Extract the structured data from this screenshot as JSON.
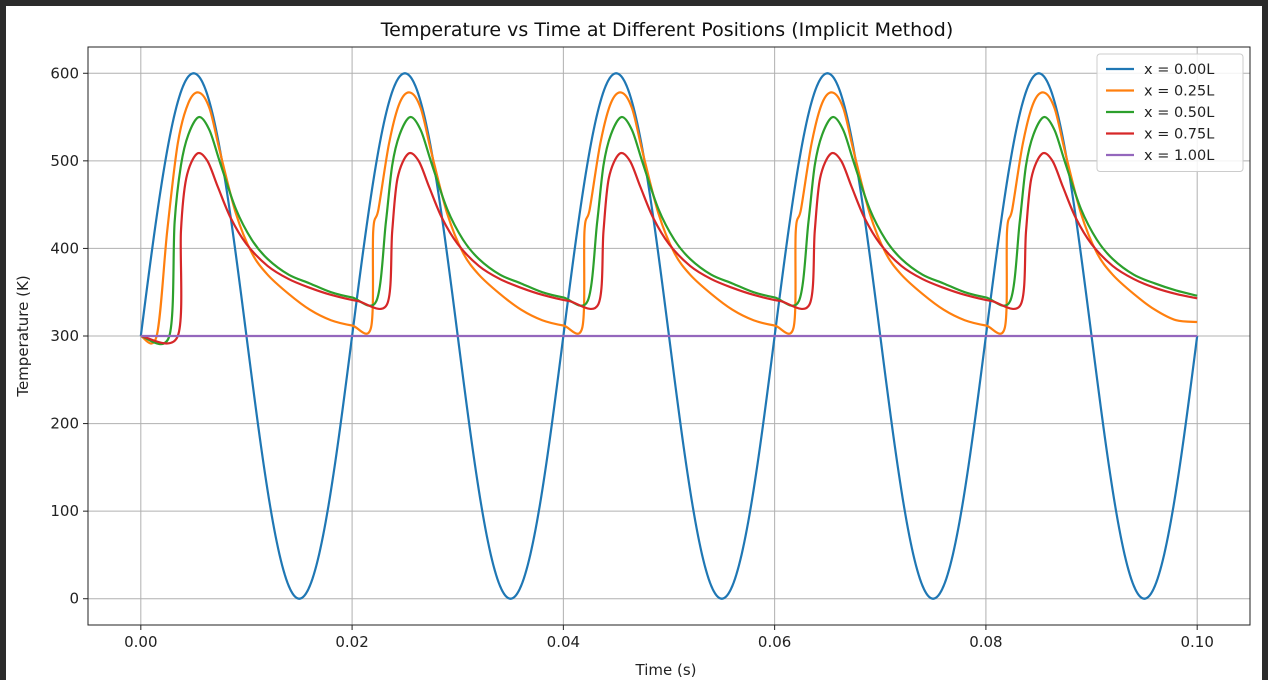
{
  "chart_data": {
    "type": "line",
    "title": "Temperature vs Time at Different Positions (Implicit Method)",
    "xlabel": "Time (s)",
    "ylabel": "Temperature (K)",
    "xlim": [
      -0.005,
      0.105
    ],
    "ylim": [
      -30,
      630
    ],
    "xticks": [
      0.0,
      0.02,
      0.04,
      0.06,
      0.08,
      0.1
    ],
    "xtick_labels": [
      "0.00",
      "0.02",
      "0.04",
      "0.06",
      "0.08",
      "0.10"
    ],
    "yticks": [
      0,
      100,
      200,
      300,
      400,
      500,
      600
    ],
    "ytick_labels": [
      "0",
      "100",
      "200",
      "300",
      "400",
      "500",
      "600"
    ],
    "grid": true,
    "legend_position": "top-right",
    "period": 0.02,
    "series": [
      {
        "name": "x = 0.00L",
        "color": "#1f77b4",
        "x": [
          0.0,
          0.0025,
          0.005,
          0.0075,
          0.01,
          0.0125,
          0.015,
          0.0175,
          0.02,
          0.0225,
          0.025,
          0.0275,
          0.03,
          0.0325,
          0.035,
          0.0375,
          0.04,
          0.0425,
          0.045,
          0.0475,
          0.05,
          0.0525,
          0.055,
          0.0575,
          0.06,
          0.0625,
          0.065,
          0.0675,
          0.07,
          0.0725,
          0.075,
          0.0775,
          0.08,
          0.0825,
          0.085,
          0.0875,
          0.09,
          0.0925,
          0.095,
          0.0975,
          0.1
        ],
        "y": [
          300,
          512,
          600,
          512,
          300,
          88,
          0,
          88,
          300,
          512,
          600,
          512,
          300,
          88,
          0,
          88,
          300,
          512,
          600,
          512,
          300,
          88,
          0,
          88,
          300,
          512,
          600,
          512,
          300,
          88,
          0,
          88,
          300,
          512,
          600,
          512,
          300,
          88,
          0,
          88,
          300
        ]
      },
      {
        "name": "x = 0.25L",
        "color": "#ff7f0e",
        "x": [
          0.0,
          0.0015,
          0.0025,
          0.0035,
          0.0045,
          0.0055,
          0.0065,
          0.0075,
          0.009,
          0.0105,
          0.012,
          0.014,
          0.016,
          0.018,
          0.02,
          0.0218,
          0.022,
          0.0225,
          0.0235,
          0.0245,
          0.0255,
          0.0265,
          0.0275,
          0.029,
          0.0305,
          0.032,
          0.034,
          0.036,
          0.038,
          0.04,
          0.0418,
          0.042,
          0.0425,
          0.0435,
          0.0445,
          0.0455,
          0.0465,
          0.0475,
          0.049,
          0.0505,
          0.052,
          0.054,
          0.056,
          0.058,
          0.06,
          0.0618,
          0.062,
          0.0625,
          0.0635,
          0.0645,
          0.0655,
          0.0665,
          0.0675,
          0.069,
          0.0705,
          0.072,
          0.074,
          0.076,
          0.078,
          0.08,
          0.0818,
          0.082,
          0.0825,
          0.0835,
          0.0845,
          0.0855,
          0.0865,
          0.0875,
          0.089,
          0.0905,
          0.092,
          0.094,
          0.096,
          0.098,
          0.1
        ],
        "y": [
          300,
          300,
          420,
          520,
          566,
          578,
          560,
          510,
          440,
          395,
          370,
          348,
          330,
          318,
          312,
          310,
          420,
          445,
          520,
          566,
          578,
          560,
          510,
          440,
          395,
          370,
          348,
          330,
          318,
          312,
          310,
          420,
          445,
          520,
          566,
          578,
          560,
          510,
          440,
          395,
          370,
          348,
          330,
          318,
          312,
          310,
          420,
          445,
          520,
          566,
          578,
          560,
          510,
          440,
          395,
          370,
          348,
          330,
          318,
          312,
          310,
          420,
          445,
          520,
          566,
          578,
          560,
          510,
          440,
          395,
          370,
          348,
          330,
          318,
          316
        ]
      },
      {
        "name": "x = 0.50L",
        "color": "#2ca02c",
        "x": [
          0.0,
          0.0027,
          0.0032,
          0.0038,
          0.0045,
          0.0055,
          0.0065,
          0.0075,
          0.009,
          0.0105,
          0.012,
          0.014,
          0.016,
          0.018,
          0.02,
          0.0223,
          0.0232,
          0.0238,
          0.0245,
          0.0255,
          0.0265,
          0.0275,
          0.029,
          0.0305,
          0.032,
          0.034,
          0.036,
          0.038,
          0.04,
          0.0423,
          0.0432,
          0.0438,
          0.0445,
          0.0455,
          0.0465,
          0.0475,
          0.049,
          0.0505,
          0.052,
          0.054,
          0.056,
          0.058,
          0.06,
          0.0623,
          0.0632,
          0.0638,
          0.0645,
          0.0655,
          0.0665,
          0.0675,
          0.069,
          0.0705,
          0.072,
          0.074,
          0.076,
          0.078,
          0.08,
          0.0823,
          0.0832,
          0.0838,
          0.0845,
          0.0855,
          0.0865,
          0.0875,
          0.089,
          0.0905,
          0.092,
          0.094,
          0.096,
          0.098,
          0.1
        ],
        "y": [
          300,
          300,
          430,
          495,
          530,
          550,
          535,
          498,
          445,
          410,
          388,
          370,
          360,
          350,
          344,
          340,
          430,
          495,
          530,
          550,
          535,
          498,
          445,
          410,
          388,
          370,
          360,
          350,
          344,
          340,
          430,
          495,
          530,
          550,
          535,
          498,
          445,
          410,
          388,
          370,
          360,
          350,
          344,
          340,
          430,
          495,
          530,
          550,
          535,
          498,
          445,
          410,
          388,
          370,
          360,
          350,
          344,
          340,
          430,
          495,
          530,
          550,
          535,
          498,
          445,
          410,
          388,
          370,
          360,
          352,
          346
        ]
      },
      {
        "name": "x = 0.75L",
        "color": "#d62728",
        "x": [
          0.0,
          0.0035,
          0.0038,
          0.0043,
          0.0053,
          0.0063,
          0.0073,
          0.0085,
          0.01,
          0.012,
          0.014,
          0.016,
          0.018,
          0.0205,
          0.0233,
          0.0238,
          0.0243,
          0.0253,
          0.0263,
          0.0273,
          0.0285,
          0.03,
          0.032,
          0.034,
          0.036,
          0.038,
          0.0405,
          0.0433,
          0.0438,
          0.0443,
          0.0453,
          0.0463,
          0.0473,
          0.0485,
          0.05,
          0.052,
          0.054,
          0.056,
          0.058,
          0.0605,
          0.0633,
          0.0638,
          0.0643,
          0.0653,
          0.0663,
          0.0673,
          0.0685,
          0.07,
          0.072,
          0.074,
          0.076,
          0.078,
          0.0805,
          0.0833,
          0.0838,
          0.0843,
          0.0853,
          0.0863,
          0.0873,
          0.0885,
          0.09,
          0.092,
          0.094,
          0.096,
          0.098,
          0.1
        ],
        "y": [
          300,
          300,
          420,
          480,
          508,
          500,
          470,
          435,
          405,
          380,
          365,
          355,
          347,
          340,
          336,
          420,
          480,
          508,
          500,
          470,
          435,
          405,
          380,
          365,
          355,
          347,
          340,
          336,
          420,
          480,
          508,
          500,
          470,
          435,
          405,
          380,
          365,
          355,
          347,
          340,
          336,
          420,
          480,
          508,
          500,
          470,
          435,
          405,
          380,
          365,
          355,
          347,
          340,
          336,
          420,
          480,
          508,
          500,
          470,
          435,
          405,
          380,
          365,
          355,
          348,
          343
        ]
      },
      {
        "name": "x = 1.00L",
        "color": "#9467bd",
        "x": [
          0.0,
          0.1
        ],
        "y": [
          300,
          300
        ]
      }
    ]
  }
}
